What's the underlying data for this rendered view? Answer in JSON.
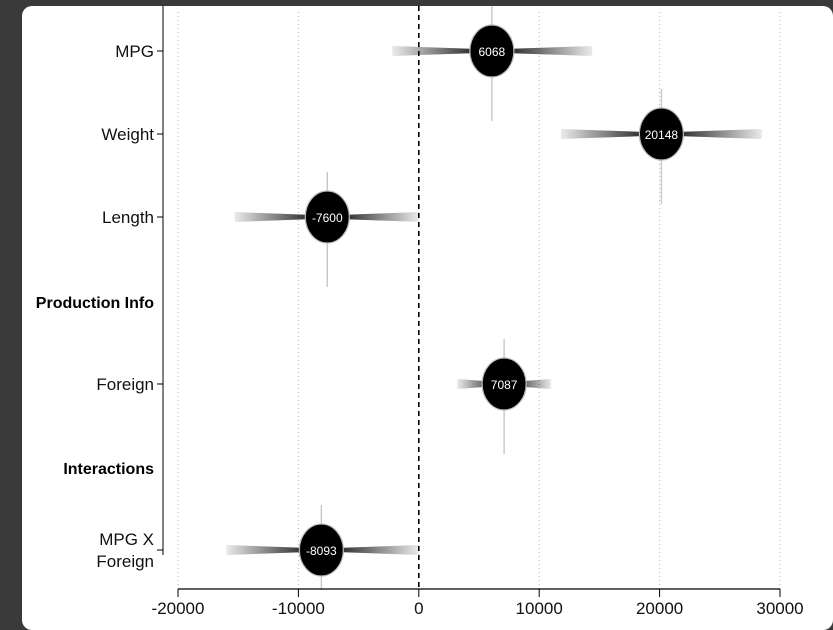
{
  "chart_data": {
    "type": "coefficient_plot",
    "reference_line": 0,
    "xlim": [
      -20000,
      30000
    ],
    "xticks": [
      -20000,
      -10000,
      0,
      10000,
      20000,
      30000
    ],
    "xtick_labels": [
      "-20000",
      "-10000",
      "0",
      "10000",
      "20000",
      "30000"
    ],
    "grid": "vertical dotted",
    "rows": [
      {
        "label": "MPG",
        "type": "coef",
        "value": 6068,
        "value_label": "6068",
        "ci_low": -2200,
        "ci_high": 14400,
        "line_low": 6000,
        "line_high": 6000
      },
      {
        "label": "Weight",
        "type": "coef",
        "value": 20148,
        "value_label": "20148",
        "ci_low": 11800,
        "ci_high": 28500
      },
      {
        "label": "Length",
        "type": "coef",
        "value": -7600,
        "value_label": "-7600",
        "ci_low": -15300,
        "ci_high": 0
      },
      {
        "label": "Production Info",
        "type": "header"
      },
      {
        "label": "Foreign",
        "type": "coef",
        "value": 7087,
        "value_label": "7087",
        "ci_low": 3200,
        "ci_high": 11000
      },
      {
        "label": "Interactions",
        "type": "header"
      },
      {
        "label": "MPG X\nForeign",
        "type": "coef",
        "value": -8093,
        "value_label": "-8093",
        "ci_low": -16000,
        "ci_high": 0
      }
    ]
  }
}
